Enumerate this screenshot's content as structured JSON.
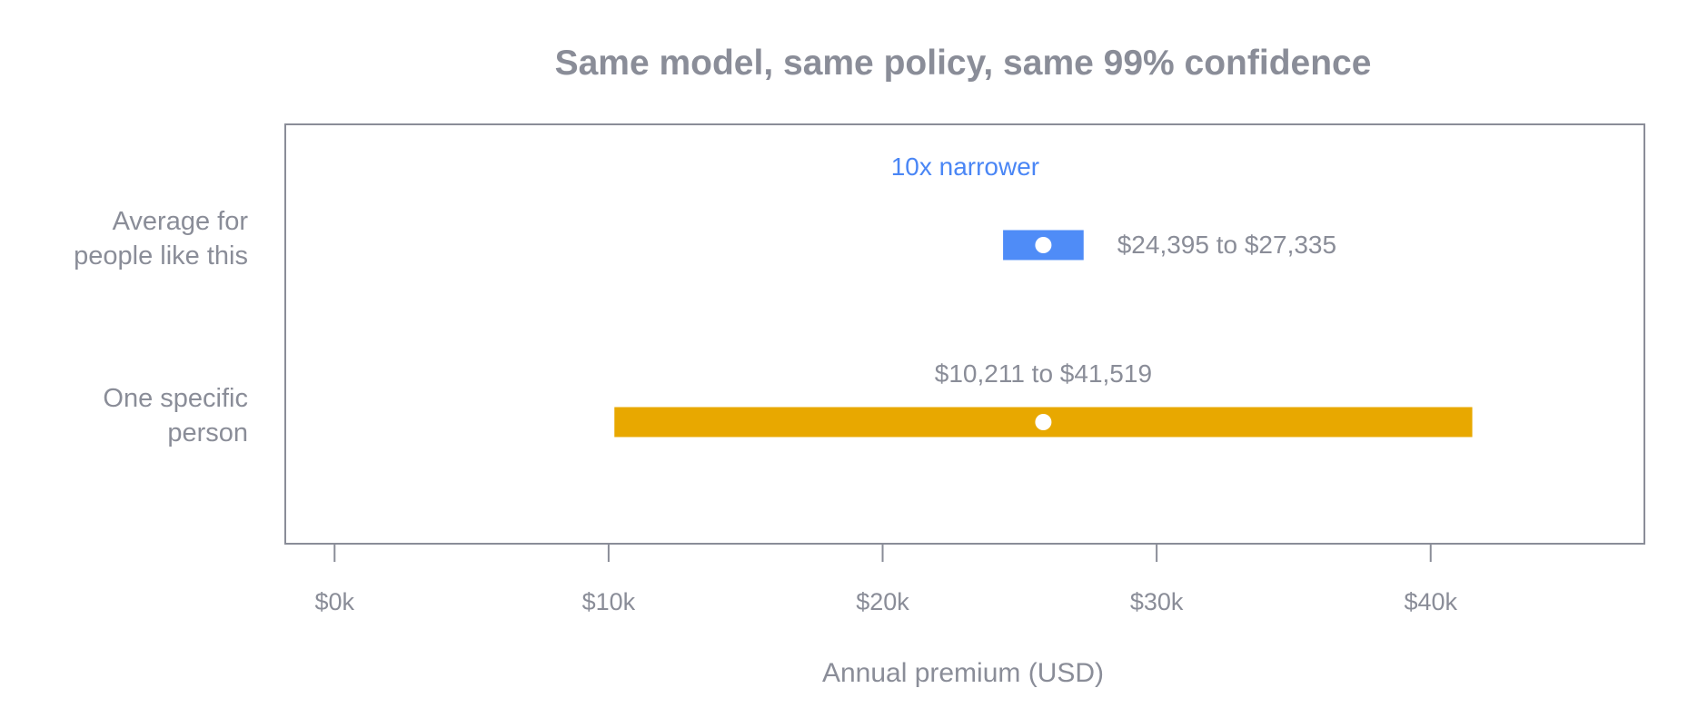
{
  "chart_data": {
    "type": "range",
    "title": "Same model, same policy, same 99% confidence",
    "xlabel": "Annual premium (USD)",
    "xlim": [
      -1800,
      47800
    ],
    "xticks": [
      {
        "value": 0,
        "label": "$0k"
      },
      {
        "value": 10000,
        "label": "$10k"
      },
      {
        "value": 20000,
        "label": "$20k"
      },
      {
        "value": 30000,
        "label": "$30k"
      },
      {
        "value": 40000,
        "label": "$40k"
      }
    ],
    "series": [
      {
        "category": [
          "Average for",
          "people like this"
        ],
        "low": 24395,
        "high": 27335,
        "point": 25865,
        "color": "#4f8cf7",
        "range_label": "$24,395 to $27,335"
      },
      {
        "category": [
          "One specific",
          "person"
        ],
        "low": 10211,
        "high": 41519,
        "point": 25865,
        "color": "#e8a800",
        "range_label": "$10,211 to $41,519"
      }
    ],
    "annotation": {
      "text": "10x narrower",
      "color": "#4a86f5"
    },
    "grid": false,
    "frame_color": "#8a8d98",
    "point_color": "#ffffff"
  }
}
